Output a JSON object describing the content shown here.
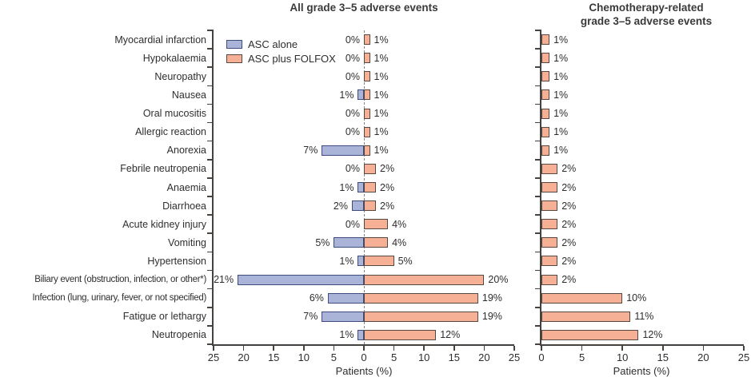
{
  "legend": {
    "items": [
      {
        "label": "ASC alone",
        "color": "#a9b4d8",
        "border": "#3e4c7d"
      },
      {
        "label": "ASC plus FOLFOX",
        "color": "#f6b096",
        "border": "#554840"
      }
    ]
  },
  "chart_data": {
    "type": "bar",
    "orientation": "horizontal-diverging",
    "xlabel": "Patients (%)",
    "value_unit": "%",
    "categories": [
      "Myocardial infarction",
      "Hypokalaemia",
      "Neuropathy",
      "Nausea",
      "Oral mucositis",
      "Allergic reaction",
      "Anorexia",
      "Febrile neutropenia",
      "Anaemia",
      "Diarrhoea",
      "Acute kidney injury",
      "Vomiting",
      "Hypertension",
      "Biliary event (obstruction, infection, or other*)",
      "Infection (lung, urinary, fever, or not specified)",
      "Fatigue or lethargy",
      "Neutropenia"
    ],
    "panels": [
      {
        "title": "All grade 3–5 adverse events",
        "axis": {
          "ticks": [
            25,
            20,
            15,
            10,
            5,
            0,
            5,
            10,
            15,
            20,
            25
          ],
          "max_each_side": 25,
          "zero_line": "dashed"
        },
        "series": [
          {
            "name": "ASC alone",
            "direction": "left",
            "color": "#a9b4d8",
            "border": "#3e4c7d",
            "values_pct": [
              0,
              0,
              0,
              1,
              0,
              0,
              7,
              0,
              1,
              2,
              0,
              5,
              1,
              21,
              6,
              7,
              1
            ]
          },
          {
            "name": "ASC plus FOLFOX",
            "direction": "right",
            "color": "#f6b096",
            "border": "#554840",
            "values_pct": [
              1,
              1,
              1,
              1,
              1,
              1,
              1,
              2,
              2,
              2,
              4,
              4,
              5,
              20,
              19,
              19,
              12
            ]
          }
        ]
      },
      {
        "title": "Chemotherapy-related grade 3–5 adverse events",
        "title_lines": [
          "Chemotherapy-related",
          "grade 3–5 adverse events"
        ],
        "axis": {
          "ticks": [
            0,
            5,
            10,
            15,
            20,
            25
          ],
          "max": 25
        },
        "series": [
          {
            "name": "ASC plus FOLFOX",
            "direction": "right",
            "color": "#f6b096",
            "border": "#554840",
            "values_pct": [
              1,
              1,
              1,
              1,
              1,
              1,
              1,
              2,
              2,
              2,
              2,
              2,
              2,
              2,
              10,
              11,
              12
            ]
          }
        ]
      }
    ]
  }
}
